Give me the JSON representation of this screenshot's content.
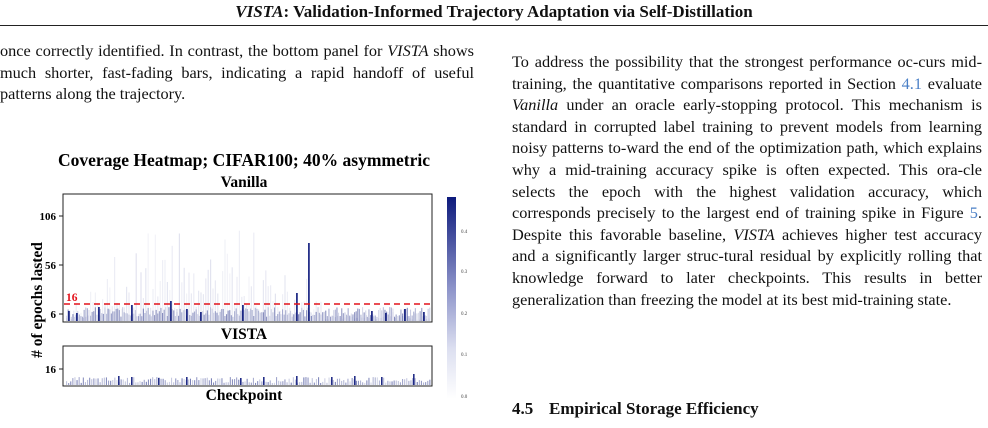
{
  "header": {
    "title_italic": "VISTA",
    "title_rest": ": Validation-Informed Trajectory Adaptation via Self-Distillation"
  },
  "left_text": {
    "l1": "once correctly identified. In contrast, the bottom panel for",
    "l2_italic": "VISTA",
    "l2_rest": " shows much shorter, fast-fading bars, indicating a",
    "l3": "rapid handoff of useful patterns along the trajectory."
  },
  "right_text": {
    "p1": "To address the possibility that the strongest performance oc-curs mid-training, the quantitative comparisons reported in Section ",
    "sec_ref": "4.1",
    "p2": " evaluate ",
    "vanilla": "Vanilla",
    "p3": " under an oracle early-stopping protocol. This mechanism is standard in corrupted label training to prevent models from learning noisy patterns to-ward the end of the optimization path, which explains why a mid-training accuracy spike is often expected. This ora-cle selects the epoch with the highest validation accuracy, which corresponds precisely to the largest end of training spike in Figure ",
    "fig_ref": "5",
    "p4": ". Despite this favorable baseline, ",
    "vista": "VISTA",
    "p5": " achieves higher test accuracy and a significantly larger struc-tural residual by explicitly rolling that knowledge forward to later checkpoints. This results in better generalization than freezing the model at its best mid-training state."
  },
  "section": {
    "number": "4.5",
    "title": "Empirical Storage Efficiency"
  },
  "figure": {
    "title": "Coverage Heatmap; CIFAR100; 40% asymmetric",
    "top_label": "Vanilla",
    "bottom_label": "VISTA",
    "xlabel": "Checkpoint",
    "ylabel": "# of epochs lasted",
    "top_ticks": [
      "106",
      "56",
      "6"
    ],
    "bottom_ticks": [
      "16"
    ],
    "threshold_label": "16",
    "threshold_color": "#e3121b",
    "cmap_color": "#0d1a7c",
    "colorbar_ticks": [
      "0.4",
      "0.3",
      "0.2",
      "0.1",
      "0.0"
    ]
  },
  "chart_data": {
    "type": "heatmap",
    "title": "Coverage Heatmap; CIFAR100; 40% asymmetric",
    "xlabel": "Checkpoint",
    "ylabel": "# of epochs lasted",
    "panels": [
      {
        "name": "Vanilla",
        "yticks": [
          106,
          56,
          6
        ],
        "ylim": [
          0,
          125
        ],
        "threshold": 16
      },
      {
        "name": "VISTA",
        "yticks": [
          16
        ],
        "ylim": [
          0,
          30
        ]
      }
    ],
    "colorbar": {
      "min": 0.0,
      "max": 0.45,
      "ticks": [
        0.4,
        0.3,
        0.2,
        0.1,
        0.0
      ]
    }
  }
}
